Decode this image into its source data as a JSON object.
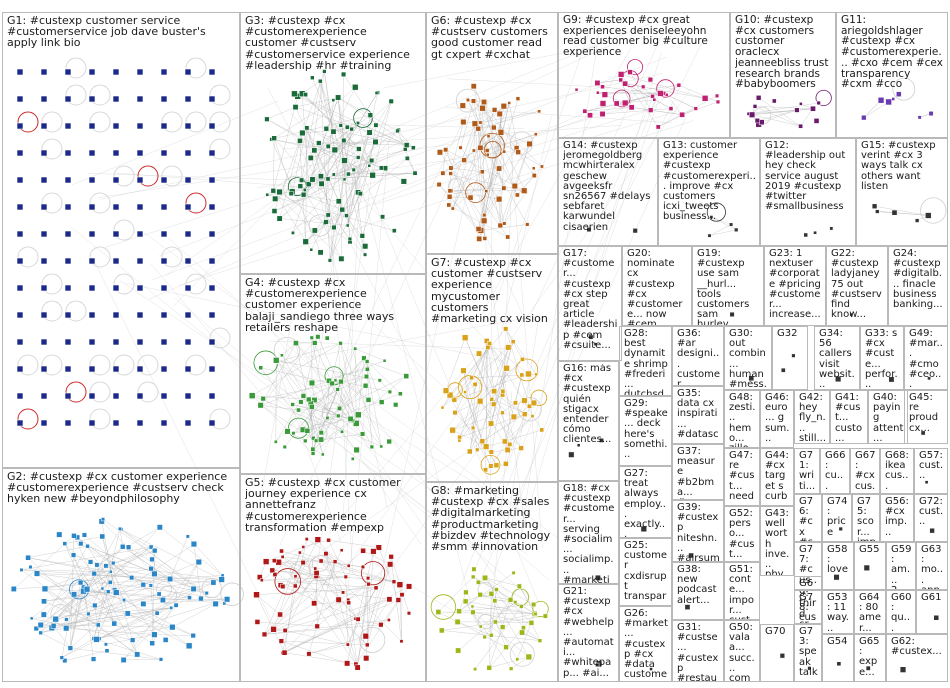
{
  "graph": {
    "title": "",
    "groups": [
      {
        "id": "G1",
        "label": "G1: #custexp customer service #customerservice job dave buster's apply link bio",
        "col": "#1b2a8a"
      },
      {
        "id": "G2",
        "label": "G2: #custexp #cx customer experience #customerexperience #custserv check hyken new #beyondphilosophy",
        "col": "#2b86c8"
      },
      {
        "id": "G3",
        "label": "G3: #custexp #cx #customerexperience customer #custserv #customerservice experience #leadership #hr #training",
        "col": "#1b6b3a"
      },
      {
        "id": "G4",
        "label": "G4: #custexp #cx #customerexperience customer experience balaji_sandiego three ways retailers reshape",
        "col": "#3a9a3a"
      },
      {
        "id": "G5",
        "label": "G5: #custexp #cx customer journey experience cx annettefranz #customerexperience transformation #empexp",
        "col": "#b01818"
      },
      {
        "id": "G6",
        "label": "G6: #custexp #cx #custserv customers good customer read gt cxpert #cxchat",
        "col": "#b05a1a"
      },
      {
        "id": "G7",
        "label": "G7: #custexp #cx customer #custserv experience mycustomer customers #marketing cx vision",
        "col": "#d9a21a"
      },
      {
        "id": "G8",
        "label": "G8: #marketing #custexp #cx #sales #digitalmarketing #productmarketing #bizdev #technology #smm #innovation",
        "col": "#9bb81a"
      },
      {
        "id": "G9",
        "label": "G9: #custexp #cx great experiences deniseleeyohn read customer big #culture experience",
        "col": "#c02070"
      },
      {
        "id": "G10",
        "label": "G10: #custexp #cx customers customer oraclecx jeanneebliss trust research brands #babyboomers",
        "col": "#6a1a6a"
      },
      {
        "id": "G11",
        "label": "G11: ariegoldshlager #custexp #cx #customerexperie... #cxo #cem #cex transparency #cxm #cco",
        "col": "#6a3ab0"
      },
      {
        "id": "G12",
        "label": "G12: #leadership out hey check service august 2019 #custexp #twitter #smallbusiness",
        "col": "#333"
      },
      {
        "id": "G13",
        "label": "G13: customer experience #custexp #customerexperi... improve #cx customers icxi_tweets business...",
        "col": "#333"
      },
      {
        "id": "G14",
        "label": "G14: #custexp jeromegoldberg mcwhirteralex geschew avgeeksfr sn26567 #delays sebfaret karwundel cisaerien",
        "col": "#333"
      },
      {
        "id": "G15",
        "label": "G15: #custexp verint #cx 3 ways talk cx others want listen",
        "col": "#333"
      },
      {
        "id": "G16",
        "label": "G16: más #cx #custexp quién stigacx entender cómo clientes...",
        "col": "#333"
      },
      {
        "id": "G17",
        "label": "G17: #customer... #custexp #cx step great article #leadership #cem #csuite...",
        "col": "#333"
      },
      {
        "id": "G18",
        "label": "G18: #cx #custexp #customer... serving #socialim... socialimp... #marketin...",
        "col": "#333"
      },
      {
        "id": "G19",
        "label": "G19: #custexp use sam __hurl... tools customers sam hurley...",
        "col": "#333"
      },
      {
        "id": "G20",
        "label": "G20: nominate cx #custexp #cx #customere... now #cem champion...",
        "col": "#333"
      },
      {
        "id": "G21",
        "label": "G21: #custexp #cx #webhelp... #automati... #whitepap... #ai...",
        "col": "#333"
      },
      {
        "id": "G22",
        "label": "G22: #custexp ladyjaney75 out #custserv find know...",
        "col": "#333"
      },
      {
        "id": "G23",
        "label": "G23: 1 nextuser #corporate #pricing #customer... increase...",
        "col": "#333"
      },
      {
        "id": "G24",
        "label": "G24: #custexp #digitalb... finacle business banking...",
        "col": "#333"
      },
      {
        "id": "G25",
        "label": "G25: customer cxdisrupt transpar... technol...",
        "col": "#333"
      },
      {
        "id": "G26",
        "label": "G26: #market... #custexp #cx #data custome...",
        "col": "#333"
      },
      {
        "id": "G27",
        "label": "G27: treat always employ... exactly...",
        "col": "#333"
      },
      {
        "id": "G28",
        "label": "G28: best dynamite shrimp #frederi... dutchsd...",
        "col": "#333"
      },
      {
        "id": "G29",
        "label": "G29: #speake... deck here's somethi...",
        "col": "#333"
      },
      {
        "id": "G30",
        "label": "G30: out combin... human #mess...",
        "col": "#333"
      },
      {
        "id": "G31",
        "label": "G31: #custse... #custexp #restaur...",
        "col": "#333"
      },
      {
        "id": "G32",
        "label": "G32",
        "col": "#333"
      },
      {
        "id": "G33",
        "label": "G33: s #cx #custe... perfor...",
        "col": "#333"
      },
      {
        "id": "G34",
        "label": "G34: 56 callers visit websit...",
        "col": "#333"
      },
      {
        "id": "G35",
        "label": "G35: data cx inspirati... #datasc...",
        "col": "#333"
      },
      {
        "id": "G36",
        "label": "G36: #ar designi... customer experie...",
        "col": "#333"
      },
      {
        "id": "G37",
        "label": "G37: measure #b2bma... #accou...",
        "col": "#333"
      },
      {
        "id": "G38",
        "label": "G38: new podcast alert...",
        "col": "#333"
      },
      {
        "id": "G39",
        "label": "G39: #custexp niteshn... #airsum...",
        "col": "#333"
      },
      {
        "id": "G40",
        "label": "G40: paying attent... custo...",
        "col": "#333"
      },
      {
        "id": "G41",
        "label": "G41: #cust... custo... insur...",
        "col": "#333"
      },
      {
        "id": "G42",
        "label": "G42: hey fly_n... still...",
        "col": "#333"
      },
      {
        "id": "G43",
        "label": "G43: well worth inve... phy...",
        "col": "#333"
      },
      {
        "id": "G44",
        "label": "G44: #cx target s curb...",
        "col": "#333"
      },
      {
        "id": "G45",
        "label": "G45: re proud cx...",
        "col": "#333"
      },
      {
        "id": "G46",
        "label": "G46: euro... g sum...",
        "col": "#333"
      },
      {
        "id": "G47",
        "label": "G47: re #cust... need...",
        "col": "#333"
      },
      {
        "id": "G48",
        "label": "G48: zesti... hemo... zillow...",
        "col": "#333"
      },
      {
        "id": "G49",
        "label": "G49: #mar... #cmo #ceo...",
        "col": "#333"
      },
      {
        "id": "G50",
        "label": "G50: valaa... succ... comp...",
        "col": "#333"
      },
      {
        "id": "G51",
        "label": "G51: conte... impor... custo...",
        "col": "#333"
      },
      {
        "id": "G52",
        "label": "G52: perso... #cust...",
        "col": "#333"
      },
      {
        "id": "G53",
        "label": "G53: 11 way...",
        "col": "#333"
      },
      {
        "id": "G54",
        "label": "G54",
        "col": "#333"
      },
      {
        "id": "G55",
        "label": "G55",
        "col": "#333"
      },
      {
        "id": "G56",
        "label": "G56: #cx imp...",
        "col": "#333"
      },
      {
        "id": "G57",
        "label": "G57: cust...",
        "col": "#333"
      },
      {
        "id": "G58",
        "label": "G58: love",
        "col": "#333"
      },
      {
        "id": "G59",
        "label": "G59: am... 2...",
        "col": "#333"
      },
      {
        "id": "G60",
        "label": "G60: qu... clo... tec...",
        "col": "#333"
      },
      {
        "id": "G61",
        "label": "G61",
        "col": "#333"
      },
      {
        "id": "G62",
        "label": "G62: #custex...",
        "col": "#333"
      },
      {
        "id": "G63",
        "label": "G63: mo... app...",
        "col": "#333"
      },
      {
        "id": "G64",
        "label": "G64: 80 amer...",
        "col": "#333"
      },
      {
        "id": "G65",
        "label": "G65: expe...",
        "col": "#333"
      },
      {
        "id": "G66",
        "label": "G66: cu... exp...",
        "col": "#333"
      },
      {
        "id": "G67",
        "label": "G67: #cx cus...",
        "col": "#333"
      },
      {
        "id": "G68",
        "label": "G68: ikea cus...",
        "col": "#333"
      },
      {
        "id": "G69",
        "label": "G69: third crm...",
        "col": "#333"
      },
      {
        "id": "G70",
        "label": "G70",
        "col": "#333"
      },
      {
        "id": "G71",
        "label": "G71: writi... cu...",
        "col": "#333"
      },
      {
        "id": "G72",
        "label": "G72: cust...",
        "col": "#333"
      },
      {
        "id": "G73",
        "label": "G73: speak talk...",
        "col": "#333"
      },
      {
        "id": "G74",
        "label": "G74: price",
        "col": "#333"
      },
      {
        "id": "G75",
        "label": "G75: scor... imp...",
        "col": "#333"
      },
      {
        "id": "G76",
        "label": "G76: #cx #cus...",
        "col": "#333"
      },
      {
        "id": "G77",
        "label": "G77: #cus... #cus...",
        "col": "#333"
      },
      {
        "id": "G78",
        "label": "G78: cust... #cx..",
        "col": "#333"
      }
    ]
  }
}
